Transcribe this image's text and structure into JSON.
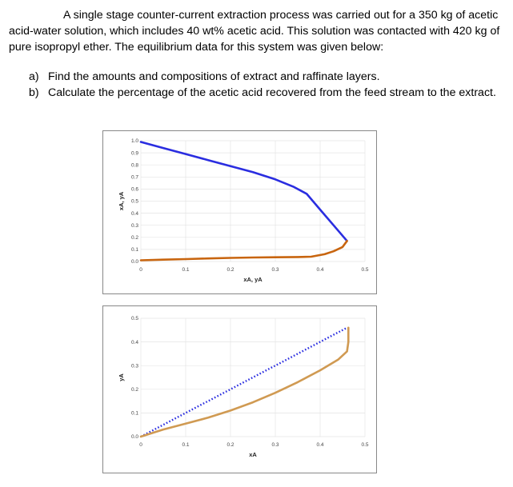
{
  "problem": {
    "paragraph": "A single stage counter-current extraction process was carried out for a 350 kg of acetic acid-water solution, which includes 40 wt% acetic acid. This solution was contacted with 420 kg of pure isopropyl ether. The equilibrium data for this system was given below:"
  },
  "questions": [
    {
      "label": "a)",
      "text": "Find the amounts and compositions of extract and raffinate layers."
    },
    {
      "label": "b)",
      "text": "Calculate the percentage of the acetic acid recovered from the feed stream to the extract."
    }
  ],
  "chart_data": [
    {
      "type": "line",
      "xlabel": "xA, yA",
      "ylabel": "xA, yA",
      "xlim": [
        0,
        0.5
      ],
      "ylim": [
        0,
        1.0
      ],
      "xticks": [
        "0",
        "0.1",
        "0.2",
        "0.3",
        "0.4",
        "0.5"
      ],
      "yticks": [
        "0.0",
        "0.1",
        "0.2",
        "0.3",
        "0.4",
        "0.5",
        "0.6",
        "0.7",
        "0.8",
        "0.9",
        "1.0"
      ],
      "grid": true,
      "colors": {
        "extract": "#2a2de0",
        "raffinate": "#c8650f"
      },
      "series": [
        {
          "key": "extract",
          "x": [
            0.0,
            0.05,
            0.1,
            0.15,
            0.2,
            0.25,
            0.3,
            0.34,
            0.37,
            0.4,
            0.43,
            0.46
          ],
          "y": [
            0.99,
            0.94,
            0.89,
            0.84,
            0.79,
            0.74,
            0.68,
            0.62,
            0.56,
            0.43,
            0.3,
            0.17
          ]
        },
        {
          "key": "raffinate",
          "x": [
            0.0,
            0.05,
            0.1,
            0.15,
            0.2,
            0.25,
            0.3,
            0.35,
            0.38,
            0.41,
            0.43,
            0.45,
            0.46
          ],
          "y": [
            0.01,
            0.015,
            0.02,
            0.025,
            0.03,
            0.033,
            0.035,
            0.037,
            0.04,
            0.06,
            0.085,
            0.12,
            0.17
          ]
        }
      ]
    },
    {
      "type": "line",
      "xlabel": "xA",
      "ylabel": "yA",
      "xlim": [
        0,
        0.5
      ],
      "ylim": [
        0,
        0.5
      ],
      "xticks": [
        "0",
        "0.1",
        "0.2",
        "0.3",
        "0.4",
        "0.5"
      ],
      "yticks": [
        "0.0",
        "0.1",
        "0.2",
        "0.3",
        "0.4",
        "0.5"
      ],
      "grid": true,
      "colors": {
        "diagonal": "#2a2de0",
        "equilibrium": "#d09a52"
      },
      "series": [
        {
          "key": "diagonal",
          "x": [
            0.0,
            0.46
          ],
          "y": [
            0.0,
            0.46
          ]
        },
        {
          "key": "equilibrium",
          "x": [
            0.0,
            0.05,
            0.1,
            0.15,
            0.2,
            0.25,
            0.3,
            0.35,
            0.4,
            0.44,
            0.46,
            0.463,
            0.463
          ],
          "y": [
            0.0,
            0.03,
            0.055,
            0.08,
            0.11,
            0.145,
            0.185,
            0.23,
            0.28,
            0.325,
            0.36,
            0.4,
            0.46
          ]
        }
      ]
    }
  ]
}
